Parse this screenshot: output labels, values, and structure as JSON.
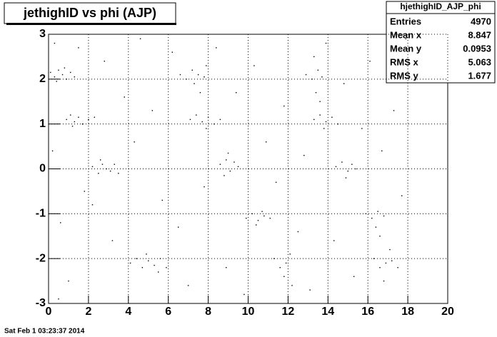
{
  "chart_data": {
    "type": "scatter",
    "title": "jethighID vs phi (AJP)",
    "color": "#000000",
    "grid": true,
    "x": [
      0.1,
      0.3,
      0.5,
      0.7,
      0.9,
      1.1,
      0.4,
      0.8,
      1.3,
      0.9,
      1.1,
      1.3,
      1.5,
      1.7,
      2.0,
      1.2,
      2.3,
      2.2,
      2.5,
      2.7,
      2.9,
      3.1,
      3.3,
      3.5,
      2.6,
      4.1,
      4.4,
      4.7,
      5.0,
      5.3,
      5.6,
      5.9,
      4.9,
      5.5,
      6.6,
      6.9,
      7.2,
      7.5,
      7.8,
      7.3,
      7.6,
      7.9,
      7.1,
      7.4,
      7.7,
      8.0,
      8.3,
      8.6,
      7.9,
      8.6,
      8.9,
      9.1,
      9.3,
      8.8,
      9.5,
      9.0,
      9.9,
      10.2,
      10.5,
      10.8,
      11.1,
      10.4,
      10.7,
      11.3,
      11.6,
      11.9,
      12.1,
      11.8,
      12.2,
      12.9,
      13.2,
      13.5,
      13.7,
      13.4,
      13.6,
      13.3,
      13.3,
      13.6,
      13.9,
      14.2,
      14.5,
      13.8,
      14.4,
      14.7,
      15.0,
      15.2,
      14.9,
      15.4,
      15.9,
      16.2,
      16.5,
      16.8,
      16.4,
      16.6,
      16.3,
      16.6,
      16.9,
      17.2,
      17.5,
      16.8,
      17.1,
      0.3,
      0.6,
      1.0,
      1.5,
      2.2,
      2.8,
      3.2,
      3.8,
      4.3,
      4.6,
      5.2,
      5.7,
      6.2,
      6.5,
      7.0,
      7.8,
      8.4,
      8.9,
      9.4,
      9.8,
      10.3,
      10.9,
      11.4,
      11.8,
      12.5,
      12.8,
      13.1,
      13.9,
      14.3,
      14.8,
      15.3,
      15.7,
      16.1,
      16.7,
      17.3,
      17.7,
      17.9,
      0.2,
      0.5,
      1.8
    ],
    "values": [
      2.15,
      2.05,
      2.2,
      2.1,
      2.0,
      2.15,
      1.95,
      2.25,
      2.05,
      1.1,
      1.2,
      1.05,
      1.15,
      1.0,
      1.1,
      0.95,
      1.15,
      0.05,
      -0.1,
      0.1,
      0,
      -0.05,
      0.1,
      -0.1,
      0.2,
      -2.1,
      -2.0,
      -2.2,
      -2.05,
      -2.15,
      -2.0,
      -2.2,
      -1.9,
      -2.3,
      2.1,
      2.0,
      2.2,
      2.1,
      2.05,
      1.9,
      1.7,
      2.3,
      1.1,
      1.2,
      1.05,
      1.15,
      1.0,
      1.1,
      0.9,
      0.1,
      0.2,
      -0.05,
      0.15,
      -0.15,
      0.05,
      0.35,
      -1.1,
      -1.0,
      -1.15,
      -1.05,
      -1.1,
      -1.25,
      -0.95,
      -2.0,
      -2.2,
      -2.1,
      -1.9,
      -2.4,
      -2.6,
      2.1,
      2.0,
      2.2,
      2.05,
      1.7,
      1.5,
      2.5,
      1.1,
      1.2,
      1.05,
      1.15,
      1.0,
      0.9,
      0.05,
      0.15,
      -0.05,
      0.1,
      -0.2,
      0,
      -1.0,
      -1.1,
      -0.95,
      -1.05,
      -1.3,
      -1.5,
      -2.0,
      -2.2,
      -2.1,
      -2.05,
      -2.2,
      -2.5,
      -1.8,
      2.8,
      -1.2,
      -2.5,
      2.7,
      -0.8,
      2.4,
      -1.6,
      1.6,
      0.6,
      2.9,
      1.3,
      -0.7,
      2.6,
      -1.3,
      -2.6,
      -0.4,
      2.7,
      -2.2,
      1.7,
      -2.8,
      2.3,
      0.6,
      -0.3,
      1.4,
      -1.4,
      0.3,
      -2.7,
      2.8,
      -1.6,
      1.9,
      -2.4,
      0.9,
      2.4,
      0.4,
      1.3,
      -0.6,
      2.9,
      0.4,
      -2.9,
      -0.5
    ],
    "xlim": [
      0,
      20
    ],
    "xticks": [
      0,
      2,
      4,
      6,
      8,
      10,
      12,
      14,
      16,
      18,
      20
    ],
    "ylim": [
      -3,
      3
    ],
    "yticks": [
      -3,
      -2,
      -1,
      0,
      1,
      2,
      3
    ],
    "stats": {
      "title": "hjethighID_AJP_phi",
      "rows": [
        {
          "label": "Entries",
          "value": 4970
        },
        {
          "label": "Mean x",
          "value": 8.847
        },
        {
          "label": "Mean y",
          "value": 0.0953
        },
        {
          "label": "RMS x",
          "value": 5.063
        },
        {
          "label": "RMS y",
          "value": 1.677
        }
      ]
    },
    "footer": "Sat Feb  1 03:23:37 2014"
  }
}
